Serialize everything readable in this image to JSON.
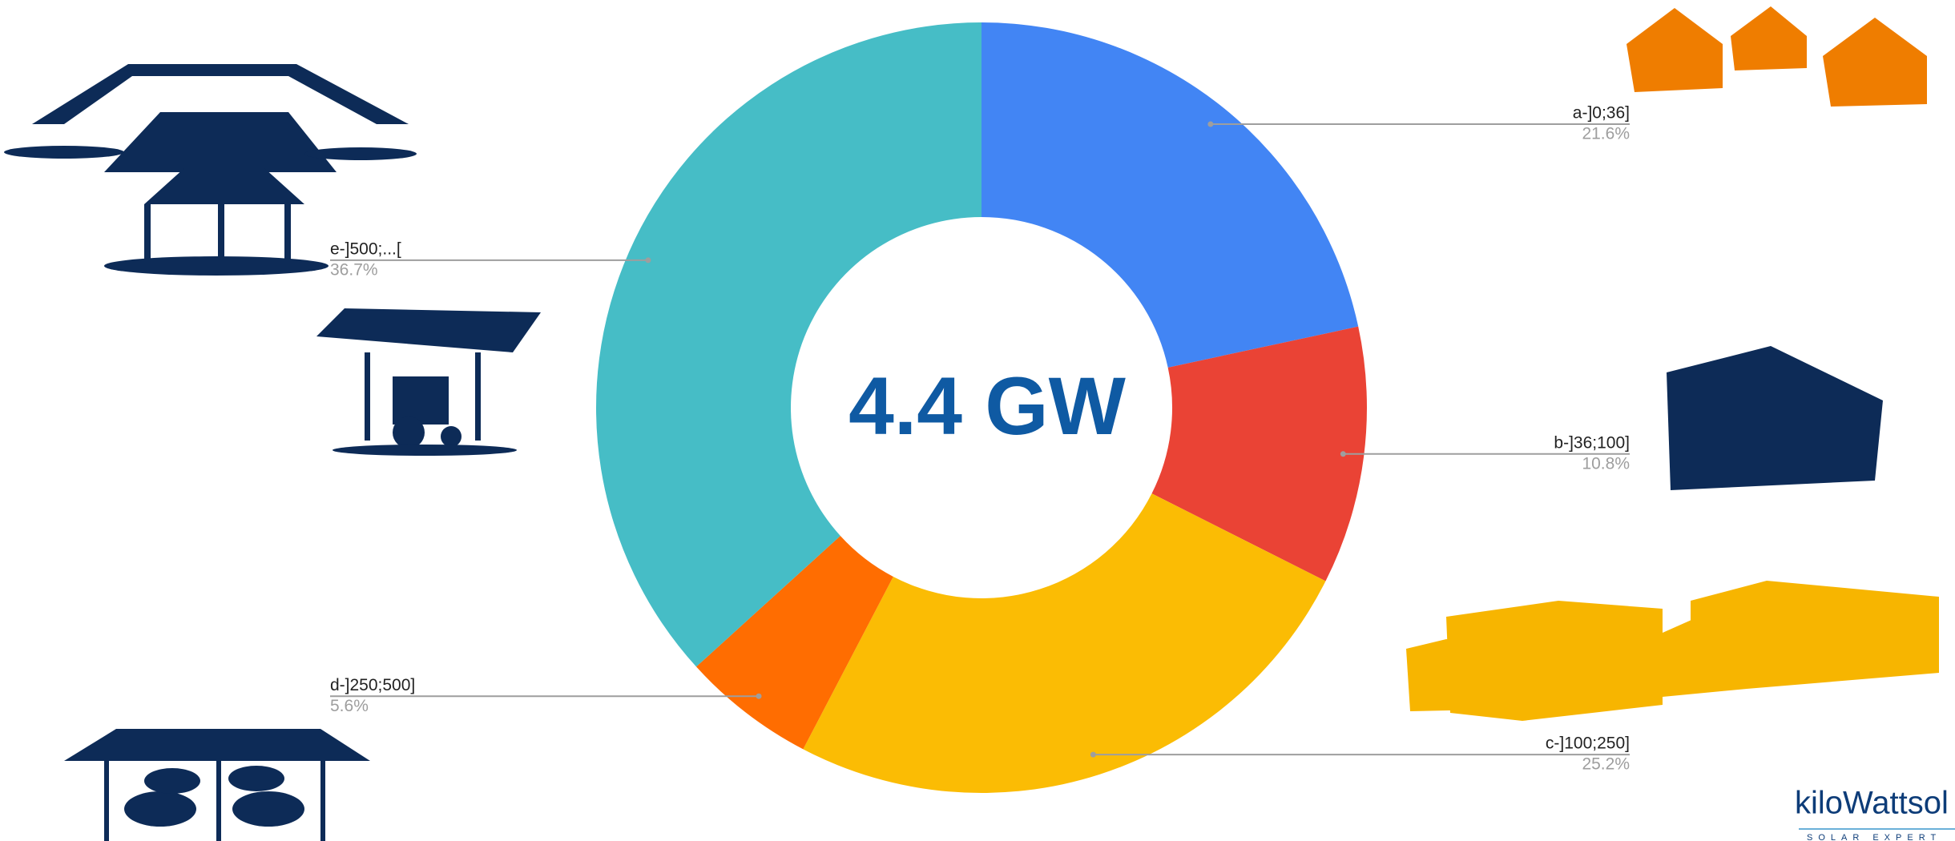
{
  "chart_data": {
    "type": "donut",
    "center_label": "4.4 GW",
    "categories": [
      "a-]0;36]",
      "b-]36;100]",
      "c-]100;250]",
      "d-]250;500]",
      "e-]500;...["
    ],
    "values": [
      21.6,
      10.8,
      25.2,
      5.6,
      36.7
    ],
    "value_labels": [
      "21.6%",
      "10.8%",
      "25.2%",
      "5.6%",
      "36.7%"
    ],
    "colors": [
      "#4285f4",
      "#ea4335",
      "#fbbc04",
      "#ff6d01",
      "#46bdc6"
    ]
  },
  "logo": {
    "name": "kiloWattsol",
    "tagline": "SOLAR EXPERT"
  }
}
